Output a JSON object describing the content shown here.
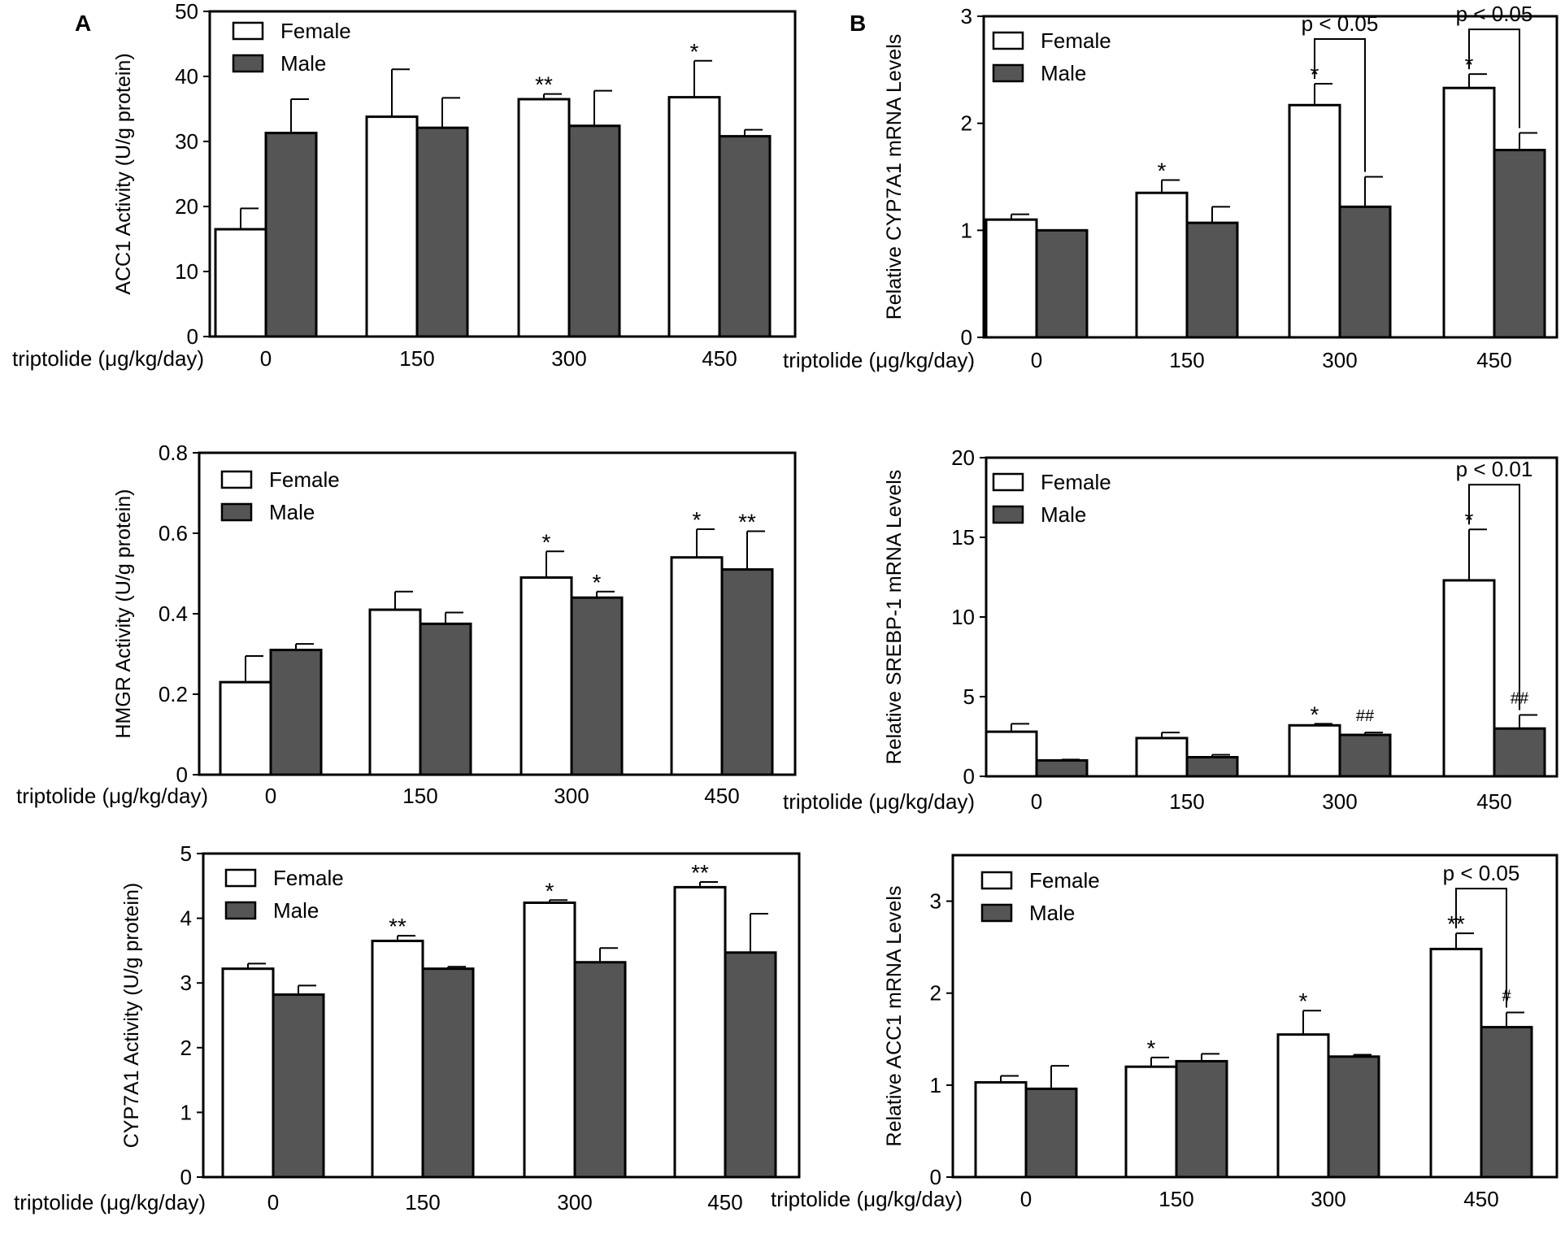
{
  "panel_labels": [
    "A",
    "B"
  ],
  "colors": {
    "female": "#ffffff",
    "male": "#555555",
    "stroke": "#000000"
  },
  "chart_data": [
    {
      "type": "bar",
      "panel": "A",
      "ylabel": "ACC1 Activity (U/g protein)",
      "xlabel": "triptolide (μg/kg/day)",
      "categories": [
        "0",
        "150",
        "300",
        "450"
      ],
      "ylim": [
        0,
        50
      ],
      "yticks": [
        0,
        10,
        20,
        30,
        40,
        50
      ],
      "legend": [
        "Female",
        "Male"
      ],
      "series": [
        {
          "name": "Female",
          "values": [
            16.5,
            33.8,
            36.5,
            36.8
          ],
          "errors": [
            3.2,
            7.3,
            0.8,
            5.6
          ],
          "annotations": [
            "",
            "",
            "**",
            "*"
          ]
        },
        {
          "name": "Male",
          "values": [
            31.3,
            32.1,
            32.4,
            30.8
          ],
          "errors": [
            5.2,
            4.6,
            5.4,
            1.0
          ],
          "annotations": [
            "",
            "",
            "",
            ""
          ]
        }
      ],
      "brackets": []
    },
    {
      "type": "bar",
      "panel": "B",
      "ylabel": "Relative CYP7A1 mRNA Levels",
      "xlabel": "triptolide (μg/kg/day)",
      "categories": [
        "0",
        "150",
        "300",
        "450"
      ],
      "ylim": [
        0,
        3
      ],
      "yticks": [
        0,
        1,
        2,
        3
      ],
      "legend": [
        "Female",
        "Male"
      ],
      "series": [
        {
          "name": "Female",
          "values": [
            1.1,
            1.35,
            2.17,
            2.33
          ],
          "errors": [
            0.05,
            0.12,
            0.2,
            0.13
          ],
          "annotations": [
            "",
            "*",
            "*",
            "*"
          ]
        },
        {
          "name": "Male",
          "values": [
            1.0,
            1.07,
            1.22,
            1.75
          ],
          "errors": [
            0.0,
            0.15,
            0.28,
            0.16
          ],
          "annotations": [
            "",
            "",
            "",
            ""
          ]
        }
      ],
      "brackets": [
        {
          "category": "300",
          "label": "p < 0.05"
        },
        {
          "category": "450",
          "label": "p < 0.05"
        }
      ]
    },
    {
      "type": "bar",
      "panel": "A",
      "ylabel": "HMGR Activity (U/g protein)",
      "xlabel": "triptolide (μg/kg/day)",
      "categories": [
        "0",
        "150",
        "300",
        "450"
      ],
      "ylim": [
        0,
        0.8
      ],
      "yticks": [
        0,
        0.2,
        0.4,
        0.6,
        0.8
      ],
      "legend": [
        "Female",
        "Male"
      ],
      "series": [
        {
          "name": "Female",
          "values": [
            0.23,
            0.41,
            0.49,
            0.54
          ],
          "errors": [
            0.065,
            0.045,
            0.065,
            0.07
          ],
          "annotations": [
            "",
            "",
            "*",
            "*"
          ]
        },
        {
          "name": "Male",
          "values": [
            0.31,
            0.375,
            0.44,
            0.51
          ],
          "errors": [
            0.015,
            0.028,
            0.015,
            0.095
          ],
          "annotations": [
            "",
            "",
            "*",
            "**"
          ]
        }
      ],
      "brackets": []
    },
    {
      "type": "bar",
      "panel": "B",
      "ylabel": "Relative SREBP-1 mRNA Levels",
      "xlabel": "triptolide (μg/kg/day)",
      "categories": [
        "0",
        "150",
        "300",
        "450"
      ],
      "ylim": [
        0,
        20
      ],
      "yticks": [
        0,
        5,
        10,
        15,
        20
      ],
      "legend": [
        "Female",
        "Male"
      ],
      "series": [
        {
          "name": "Female",
          "values": [
            2.8,
            2.4,
            3.2,
            12.3
          ],
          "errors": [
            0.5,
            0.35,
            0.1,
            3.2
          ],
          "annotations": [
            "",
            "",
            "*",
            "*"
          ]
        },
        {
          "name": "Male",
          "values": [
            1.0,
            1.2,
            2.6,
            3.0
          ],
          "errors": [
            0.05,
            0.15,
            0.15,
            0.85
          ],
          "annotations": [
            "",
            "",
            "##",
            "##"
          ]
        }
      ],
      "brackets": [
        {
          "category": "450",
          "label": "p < 0.01"
        }
      ]
    },
    {
      "type": "bar",
      "panel": "A",
      "ylabel": "CYP7A1 Activity (U/g protein)",
      "xlabel": "triptolide (μg/kg/day)",
      "categories": [
        "0",
        "150",
        "300",
        "450"
      ],
      "ylim": [
        0,
        5
      ],
      "yticks": [
        0,
        1,
        2,
        3,
        4,
        5
      ],
      "legend": [
        "Female",
        "Male"
      ],
      "series": [
        {
          "name": "Female",
          "values": [
            3.22,
            3.65,
            4.24,
            4.48
          ],
          "errors": [
            0.08,
            0.08,
            0.04,
            0.08
          ],
          "annotations": [
            "",
            "**",
            "*",
            "**"
          ]
        },
        {
          "name": "Male",
          "values": [
            2.82,
            3.22,
            3.32,
            3.47
          ],
          "errors": [
            0.14,
            0.03,
            0.22,
            0.6
          ],
          "annotations": [
            "",
            "",
            "",
            ""
          ]
        }
      ],
      "brackets": []
    },
    {
      "type": "bar",
      "panel": "B",
      "ylabel": "Relative ACC1 mRNA Levels",
      "xlabel": "triptolide (μg/kg/day)",
      "categories": [
        "0",
        "150",
        "300",
        "450"
      ],
      "ylim": [
        0,
        3.5
      ],
      "yticks": [
        0,
        1,
        2,
        3
      ],
      "legend": [
        "Female",
        "Male"
      ],
      "series": [
        {
          "name": "Female",
          "values": [
            1.03,
            1.2,
            1.55,
            2.48
          ],
          "errors": [
            0.07,
            0.1,
            0.26,
            0.17
          ],
          "annotations": [
            "",
            "*",
            "*",
            "**"
          ]
        },
        {
          "name": "Male",
          "values": [
            0.96,
            1.26,
            1.31,
            1.63
          ],
          "errors": [
            0.25,
            0.08,
            0.02,
            0.16
          ],
          "annotations": [
            "",
            "",
            "",
            "#"
          ]
        }
      ],
      "brackets": [
        {
          "category": "450",
          "label": "p < 0.05"
        }
      ]
    }
  ]
}
